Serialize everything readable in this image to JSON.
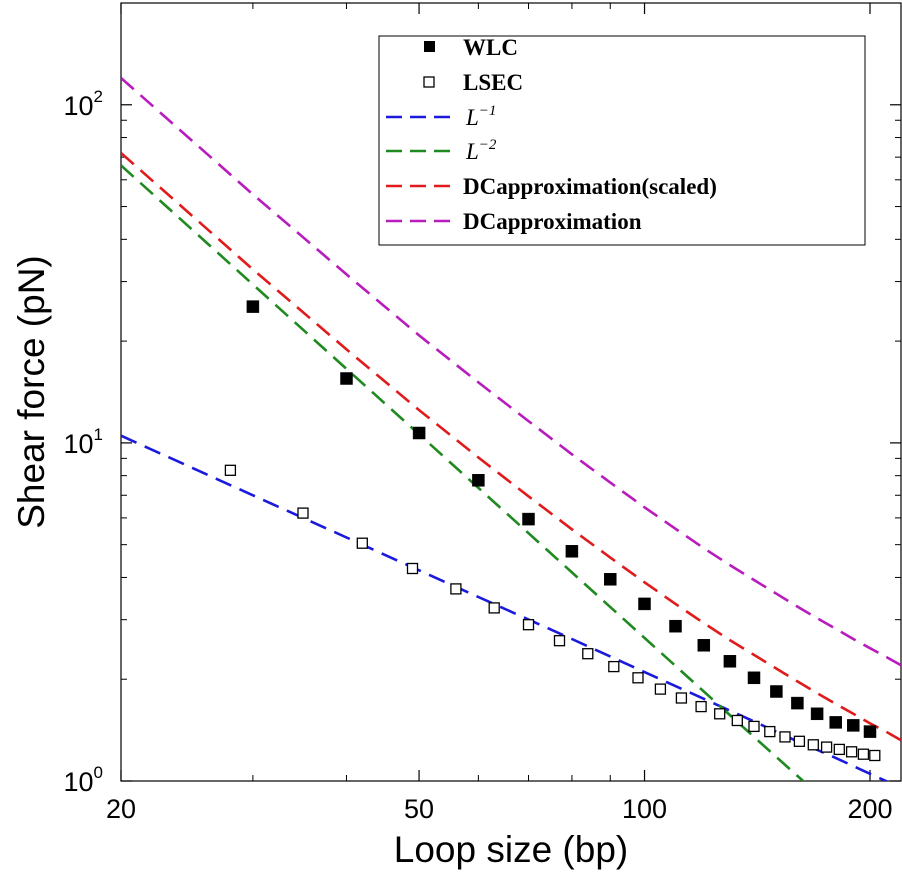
{
  "chart_data": {
    "type": "scatter",
    "xscale": "log",
    "yscale": "log",
    "xlim": [
      20,
      220
    ],
    "ylim": [
      1,
      200
    ],
    "xlabel": "Loop size (bp)",
    "ylabel": "Shear force (pN)",
    "xticks": [
      20,
      50,
      100,
      200
    ],
    "xtick_labels": [
      "20",
      "50",
      "100",
      "200"
    ],
    "yticks": [
      1,
      10,
      100
    ],
    "ytick_labels": [
      {
        "base": "10",
        "exp": "0"
      },
      {
        "base": "10",
        "exp": "1"
      },
      {
        "base": "10",
        "exp": "2"
      }
    ],
    "legend_position": "top-right",
    "series": [
      {
        "name": "WLC",
        "kind": "markers",
        "marker": "filled-square",
        "color": "#000000",
        "x": [
          30,
          40,
          50,
          60,
          70,
          80,
          90,
          100,
          110,
          120,
          130,
          140,
          150,
          160,
          170,
          180,
          190,
          200
        ],
        "y": [
          25.3,
          15.5,
          10.7,
          7.75,
          5.95,
          4.78,
          3.95,
          3.34,
          2.87,
          2.52,
          2.26,
          2.02,
          1.84,
          1.7,
          1.58,
          1.49,
          1.46,
          1.4
        ]
      },
      {
        "name": "LSEC",
        "kind": "markers",
        "marker": "open-square",
        "color": "#000000",
        "x": [
          28,
          35,
          42,
          49,
          56,
          63,
          70,
          77,
          84,
          91,
          98,
          105,
          112,
          119,
          126,
          133,
          140,
          147,
          154,
          161,
          168,
          175,
          182,
          189,
          196,
          203
        ],
        "y": [
          8.3,
          6.2,
          5.05,
          4.25,
          3.7,
          3.25,
          2.9,
          2.6,
          2.38,
          2.18,
          2.02,
          1.87,
          1.76,
          1.66,
          1.58,
          1.51,
          1.45,
          1.4,
          1.35,
          1.31,
          1.28,
          1.26,
          1.24,
          1.22,
          1.2,
          1.19
        ]
      },
      {
        "name": "L^-1",
        "label_base": "L",
        "label_exp": "−1",
        "kind": "dashed-line",
        "color": "#1a1add",
        "x": [
          20,
          30,
          40,
          50,
          60,
          80,
          100,
          120,
          140,
          160,
          180,
          200,
          220
        ],
        "y": [
          10.5,
          7.0,
          5.25,
          4.2,
          3.5,
          2.63,
          2.1,
          1.75,
          1.5,
          1.31,
          1.17,
          1.05,
          0.955
        ]
      },
      {
        "name": "L^-2",
        "label_base": "L",
        "label_exp": "−2",
        "kind": "dashed-line",
        "color": "#1f8a1f",
        "x": [
          20,
          30,
          40,
          50,
          60,
          80,
          100,
          120,
          140,
          160,
          170
        ],
        "y": [
          66.2,
          29.4,
          16.55,
          10.6,
          7.36,
          4.14,
          2.65,
          1.84,
          1.35,
          1.035,
          0.92
        ]
      },
      {
        "name": "DCapproximation(scaled)",
        "kind": "dashed-line",
        "color": "#e01b1b",
        "x": [
          20,
          30,
          40,
          50,
          60,
          70,
          80,
          90,
          100,
          110,
          120,
          130,
          140,
          150,
          160,
          170,
          180,
          190,
          200,
          210,
          220
        ],
        "y": [
          72,
          32.6,
          18.9,
          12.5,
          9.05,
          6.95,
          5.55,
          4.58,
          3.87,
          3.34,
          2.93,
          2.61,
          2.36,
          2.15,
          1.97,
          1.82,
          1.69,
          1.58,
          1.48,
          1.4,
          1.32
        ]
      },
      {
        "name": "DCapproximation",
        "kind": "dashed-line",
        "color": "#b81cbd",
        "x": [
          20,
          30,
          40,
          50,
          60,
          70,
          80,
          90,
          100,
          110,
          120,
          130,
          140,
          150,
          160,
          170,
          180,
          190,
          200,
          210,
          220
        ],
        "y": [
          120,
          54.3,
          31.5,
          20.8,
          15.1,
          11.6,
          9.25,
          7.63,
          6.45,
          5.57,
          4.88,
          4.35,
          3.93,
          3.58,
          3.28,
          3.03,
          2.82,
          2.63,
          2.47,
          2.33,
          2.2
        ]
      }
    ]
  }
}
